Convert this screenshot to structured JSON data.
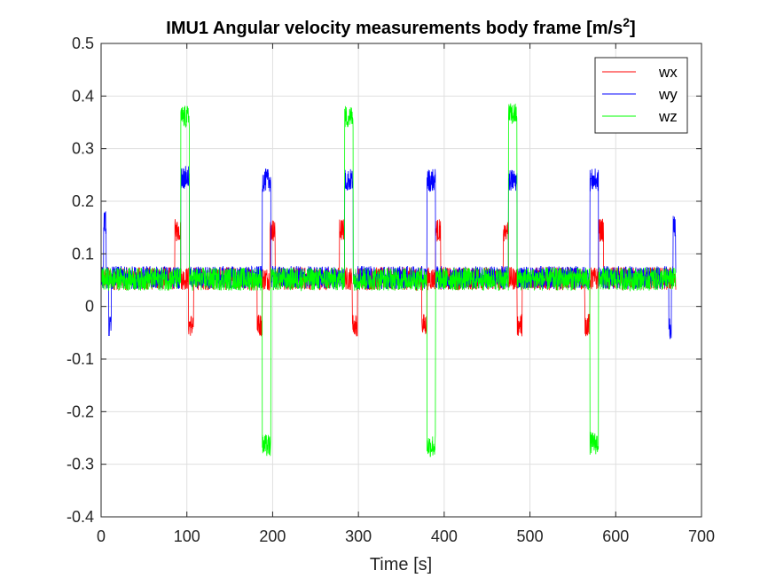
{
  "chart_data": {
    "type": "line",
    "title": "IMU1 Angular velocity measurements body frame [m/s",
    "title_superscript": "2",
    "title_suffix": "]",
    "xlabel": "Time [s]",
    "ylabel": "",
    "xlim": [
      0,
      700
    ],
    "ylim": [
      -0.4,
      0.5
    ],
    "xticks": [
      0,
      100,
      200,
      300,
      400,
      500,
      600,
      700
    ],
    "xtick_labels": [
      "0",
      "100",
      "200",
      "300",
      "400",
      "500",
      "600",
      "700"
    ],
    "yticks": [
      -0.4,
      -0.3,
      -0.2,
      -0.1,
      0,
      0.1,
      0.2,
      0.3,
      0.4,
      0.5
    ],
    "ytick_labels": [
      "-0.4",
      "-0.3",
      "-0.2",
      "-0.1",
      "0",
      "0.1",
      "0.2",
      "0.3",
      "0.4",
      "0.5"
    ],
    "grid": true,
    "legend_position": "top-right",
    "t_end": 670,
    "noise_amplitude": 0.022,
    "series": [
      {
        "name": "wx",
        "color": "#ff0000",
        "baseline": 0.053,
        "segments": [
          {
            "x": [
              86,
              93
            ],
            "y": 0.145
          },
          {
            "x": [
              93,
              102
            ],
            "y": 0.053
          },
          {
            "x": [
              102,
              108
            ],
            "y": -0.035
          },
          {
            "x": [
              182,
              188
            ],
            "y": -0.035
          },
          {
            "x": [
              188,
              197
            ],
            "y": 0.053
          },
          {
            "x": [
              197,
              203
            ],
            "y": 0.145
          },
          {
            "x": [
              278,
              284
            ],
            "y": 0.145
          },
          {
            "x": [
              284,
              293
            ],
            "y": 0.053
          },
          {
            "x": [
              293,
              299
            ],
            "y": -0.035
          },
          {
            "x": [
              374,
              380
            ],
            "y": -0.035
          },
          {
            "x": [
              380,
              390
            ],
            "y": 0.053
          },
          {
            "x": [
              390,
              396
            ],
            "y": 0.145
          },
          {
            "x": [
              469,
              475
            ],
            "y": 0.145
          },
          {
            "x": [
              475,
              485
            ],
            "y": 0.053
          },
          {
            "x": [
              485,
              491
            ],
            "y": -0.035
          },
          {
            "x": [
              564,
              570
            ],
            "y": -0.035
          },
          {
            "x": [
              570,
              580
            ],
            "y": 0.053
          },
          {
            "x": [
              580,
              586
            ],
            "y": 0.145
          }
        ]
      },
      {
        "name": "wy",
        "color": "#0000ff",
        "baseline": 0.055,
        "segments": [
          {
            "x": [
              3,
              6
            ],
            "y": 0.16
          },
          {
            "x": [
              9,
              12
            ],
            "y": -0.04
          },
          {
            "x": [
              93,
              103
            ],
            "y": 0.245
          },
          {
            "x": [
              188,
              198
            ],
            "y": 0.24
          },
          {
            "x": [
              284,
              294
            ],
            "y": 0.24
          },
          {
            "x": [
              380,
              390
            ],
            "y": 0.24
          },
          {
            "x": [
              475,
              485
            ],
            "y": 0.24
          },
          {
            "x": [
              570,
              580
            ],
            "y": 0.24
          },
          {
            "x": [
              662,
              665
            ],
            "y": -0.04
          },
          {
            "x": [
              667,
              670
            ],
            "y": 0.15
          }
        ]
      },
      {
        "name": "wz",
        "color": "#00ff00",
        "baseline": 0.052,
        "segments": [
          {
            "x": [
              93,
              103
            ],
            "y": 0.36
          },
          {
            "x": [
              188,
              198
            ],
            "y": -0.265
          },
          {
            "x": [
              284,
              294
            ],
            "y": 0.36
          },
          {
            "x": [
              380,
              390
            ],
            "y": -0.265
          },
          {
            "x": [
              475,
              485
            ],
            "y": 0.365
          },
          {
            "x": [
              570,
              580
            ],
            "y": -0.26
          }
        ]
      }
    ]
  }
}
